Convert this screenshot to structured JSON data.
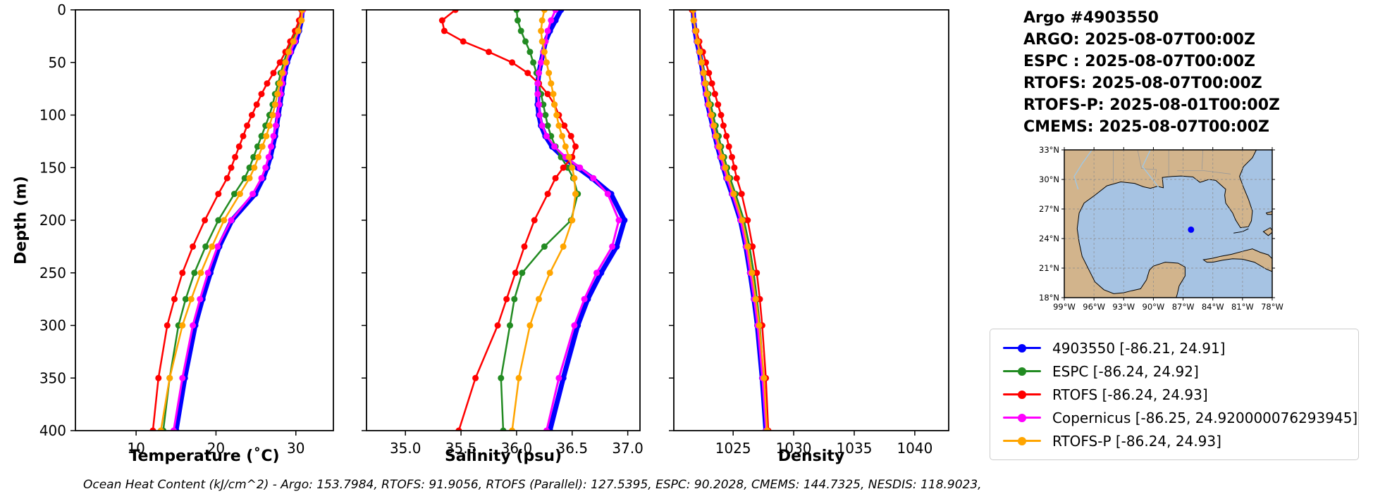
{
  "header": {
    "title": "Argo #4903550",
    "lines": [
      "ARGO: 2025-08-07T00:00Z",
      "ESPC : 2025-08-07T00:00Z",
      "RTOFS: 2025-08-07T00:00Z",
      "RTOFS-P: 2025-08-01T00:00Z",
      "CMEMS: 2025-08-07T00:00Z"
    ]
  },
  "axis": {
    "ylabel": "Depth (m)"
  },
  "footer": {
    "text": "Ocean Heat Content (kJ/cm^2) - Argo: 153.7984,  RTOFS: 91.9056,  RTOFS (Parallel): 127.5395,  ESPC: 90.2028,  CMEMS: 144.7325,  NESDIS: 118.9023,"
  },
  "legend": {
    "items": [
      {
        "label": "4903550 [-86.21, 24.91]",
        "color": "#0000ff"
      },
      {
        "label": "ESPC [-86.24, 24.92]",
        "color": "#228B22"
      },
      {
        "label": "RTOFS [-86.24, 24.93]",
        "color": "#ff0000"
      },
      {
        "label": "Copernicus [-86.25, 24.920000076293945]",
        "color": "#ff00ff"
      },
      {
        "label": "RTOFS-P [-86.24, 24.93]",
        "color": "#ffa500"
      }
    ]
  },
  "series_meta": {
    "4903550": {
      "color": "#0000ff",
      "lw": 7,
      "r": 4.5
    },
    "ESPC": {
      "color": "#228B22",
      "lw": 2.5,
      "r": 4.5
    },
    "RTOFS": {
      "color": "#ff0000",
      "lw": 2.5,
      "r": 4.5
    },
    "Copernicus": {
      "color": "#ff00ff",
      "lw": 3,
      "r": 4.5
    },
    "RTOFS-P": {
      "color": "#ffa500",
      "lw": 2.5,
      "r": 4.5
    }
  },
  "chart_data": [
    {
      "type": "line",
      "xlabel": "Temperature (˚C)",
      "xlim": [
        2.4,
        34.7
      ],
      "xticks": [
        10,
        20,
        30
      ],
      "xtick_labels": [
        "10",
        "20",
        "30"
      ],
      "ylim": [
        0,
        400
      ],
      "y_inverted": true,
      "yticks": [
        0,
        50,
        100,
        150,
        200,
        250,
        300,
        350,
        400
      ],
      "ytick_labels": [
        "0",
        "50",
        "100",
        "150",
        "200",
        "250",
        "300",
        "350",
        "400"
      ],
      "show_depth_labels": true,
      "depths": [
        0,
        10,
        20,
        30,
        40,
        50,
        60,
        70,
        80,
        90,
        100,
        110,
        120,
        130,
        140,
        150,
        160,
        175,
        200,
        225,
        250,
        275,
        300,
        350,
        400
      ],
      "series": [
        {
          "name": "4903550",
          "values": [
            30.8,
            30.7,
            30.4,
            30.0,
            29.4,
            28.9,
            28.6,
            28.4,
            28.2,
            28.0,
            27.8,
            27.6,
            27.4,
            27.1,
            26.8,
            26.4,
            25.9,
            24.9,
            22.0,
            20.4,
            19.3,
            18.3,
            17.4,
            16.1,
            15.0
          ]
        },
        {
          "name": "ESPC",
          "values": [
            30.9,
            30.6,
            30.1,
            29.5,
            28.9,
            28.5,
            28.1,
            27.8,
            27.4,
            27.1,
            26.7,
            26.2,
            25.7,
            25.2,
            24.7,
            24.2,
            23.6,
            22.3,
            20.3,
            18.7,
            17.3,
            16.2,
            15.3,
            14.2,
            13.4
          ]
        },
        {
          "name": "RTOFS",
          "values": [
            30.7,
            30.4,
            29.9,
            29.3,
            28.7,
            28.0,
            27.2,
            26.4,
            25.7,
            25.1,
            24.5,
            23.9,
            23.4,
            22.9,
            22.4,
            21.9,
            21.4,
            20.3,
            18.6,
            17.1,
            15.8,
            14.8,
            13.9,
            12.8,
            12.1
          ]
        },
        {
          "name": "Copernicus",
          "values": [
            30.9,
            30.7,
            30.3,
            29.9,
            29.3,
            28.8,
            28.5,
            28.3,
            28.1,
            27.9,
            27.7,
            27.5,
            27.2,
            26.9,
            26.6,
            26.2,
            25.7,
            24.6,
            21.9,
            20.2,
            19.0,
            18.0,
            17.1,
            15.8,
            14.7
          ]
        },
        {
          "name": "RTOFS-P",
          "values": [
            30.8,
            30.7,
            30.3,
            29.7,
            29.1,
            28.7,
            28.3,
            28.0,
            27.7,
            27.4,
            27.1,
            26.7,
            26.3,
            25.8,
            25.3,
            24.8,
            24.2,
            23.0,
            21.0,
            19.5,
            18.1,
            16.9,
            15.8,
            14.2,
            13.1
          ]
        }
      ]
    },
    {
      "type": "line",
      "xlabel": "Salinity (psu)",
      "xlim": [
        34.65,
        37.11
      ],
      "xticks": [
        35.0,
        35.5,
        36.0,
        36.5,
        37.0
      ],
      "xtick_labels": [
        "35.0",
        "35.5",
        "36.0",
        "36.5",
        "37.0"
      ],
      "ylim": [
        0,
        400
      ],
      "y_inverted": true,
      "show_depth_labels": false,
      "depths": [
        0,
        10,
        20,
        30,
        40,
        50,
        60,
        70,
        80,
        90,
        100,
        110,
        120,
        130,
        140,
        150,
        160,
        175,
        200,
        225,
        250,
        275,
        300,
        350,
        400
      ],
      "series": [
        {
          "name": "4903550",
          "values": [
            36.4,
            36.35,
            36.3,
            36.26,
            36.24,
            36.22,
            36.2,
            36.19,
            36.19,
            36.19,
            36.2,
            36.22,
            36.26,
            36.32,
            36.42,
            36.55,
            36.68,
            36.85,
            36.97,
            36.9,
            36.76,
            36.64,
            36.55,
            36.42,
            36.3
          ]
        },
        {
          "name": "ESPC",
          "values": [
            36.0,
            36.01,
            36.04,
            36.08,
            36.12,
            36.15,
            36.18,
            36.2,
            36.22,
            36.24,
            36.26,
            36.28,
            36.31,
            36.35,
            36.4,
            36.46,
            36.51,
            36.55,
            36.49,
            36.25,
            36.05,
            35.98,
            35.94,
            35.86,
            35.88
          ]
        },
        {
          "name": "RTOFS",
          "values": [
            35.45,
            35.33,
            35.35,
            35.52,
            35.75,
            35.96,
            36.1,
            36.2,
            36.28,
            36.34,
            36.38,
            36.43,
            36.49,
            36.53,
            36.5,
            36.42,
            36.35,
            36.28,
            36.16,
            36.07,
            35.99,
            35.91,
            35.83,
            35.63,
            35.48
          ]
        },
        {
          "name": "Copernicus",
          "values": [
            36.35,
            36.31,
            36.28,
            36.26,
            36.24,
            36.22,
            36.2,
            36.19,
            36.19,
            36.2,
            36.21,
            36.23,
            36.27,
            36.34,
            36.44,
            36.57,
            36.69,
            36.82,
            36.92,
            36.86,
            36.72,
            36.61,
            36.52,
            36.38,
            36.27
          ]
        },
        {
          "name": "RTOFS-P",
          "values": [
            36.25,
            36.23,
            36.22,
            36.23,
            36.25,
            36.27,
            36.29,
            36.31,
            36.33,
            36.34,
            36.36,
            36.38,
            36.41,
            36.44,
            36.47,
            36.5,
            36.52,
            36.53,
            36.5,
            36.42,
            36.3,
            36.2,
            36.12,
            36.02,
            35.96
          ]
        }
      ]
    },
    {
      "type": "line",
      "xlabel": "Density",
      "xlim": [
        1020.1,
        1042.8
      ],
      "xticks": [
        1025,
        1030,
        1035,
        1040
      ],
      "xtick_labels": [
        "1025",
        "1030",
        "1035",
        "1040"
      ],
      "ylim": [
        0,
        400
      ],
      "y_inverted": true,
      "show_depth_labels": false,
      "depths": [
        0,
        10,
        20,
        30,
        40,
        50,
        60,
        70,
        80,
        90,
        100,
        110,
        120,
        130,
        140,
        150,
        160,
        175,
        200,
        225,
        250,
        275,
        300,
        350,
        400
      ],
      "series": [
        {
          "name": "4903550",
          "values": [
            1021.7,
            1021.75,
            1021.85,
            1022.0,
            1022.2,
            1022.35,
            1022.5,
            1022.6,
            1022.75,
            1022.9,
            1023.1,
            1023.3,
            1023.5,
            1023.7,
            1023.95,
            1024.2,
            1024.45,
            1024.9,
            1025.6,
            1026.05,
            1026.4,
            1026.72,
            1027.0,
            1027.4,
            1027.7
          ]
        },
        {
          "name": "ESPC",
          "values": [
            1021.65,
            1021.75,
            1021.9,
            1022.05,
            1022.25,
            1022.45,
            1022.6,
            1022.75,
            1022.95,
            1023.15,
            1023.35,
            1023.55,
            1023.8,
            1024.0,
            1024.25,
            1024.5,
            1024.75,
            1025.2,
            1025.9,
            1026.35,
            1026.7,
            1026.97,
            1027.2,
            1027.5,
            1027.75
          ]
        },
        {
          "name": "RTOFS",
          "values": [
            1021.6,
            1021.75,
            1021.95,
            1022.2,
            1022.5,
            1022.75,
            1023.0,
            1023.25,
            1023.5,
            1023.75,
            1024.0,
            1024.2,
            1024.45,
            1024.65,
            1024.9,
            1025.1,
            1025.3,
            1025.7,
            1026.2,
            1026.6,
            1026.95,
            1027.2,
            1027.4,
            1027.7,
            1027.9
          ]
        },
        {
          "name": "Copernicus",
          "values": [
            1021.72,
            1021.77,
            1021.87,
            1022.02,
            1022.22,
            1022.37,
            1022.52,
            1022.62,
            1022.77,
            1022.92,
            1023.12,
            1023.32,
            1023.52,
            1023.73,
            1023.98,
            1024.23,
            1024.48,
            1024.93,
            1025.62,
            1026.07,
            1026.42,
            1026.74,
            1027.02,
            1027.42,
            1027.72
          ]
        },
        {
          "name": "RTOFS-P",
          "values": [
            1021.7,
            1021.75,
            1021.9,
            1022.05,
            1022.25,
            1022.4,
            1022.55,
            1022.7,
            1022.85,
            1023.0,
            1023.2,
            1023.4,
            1023.6,
            1023.85,
            1024.1,
            1024.35,
            1024.6,
            1025.05,
            1025.75,
            1026.2,
            1026.55,
            1026.87,
            1027.15,
            1027.55,
            1027.8
          ]
        }
      ]
    }
  ],
  "map": {
    "lon_min": -99,
    "lon_max": -78,
    "lat_min": 18,
    "lat_max": 33,
    "lon_ticks": [
      -99,
      -96,
      -93,
      -90,
      -87,
      -84,
      -81,
      -78
    ],
    "lon_tick_labels": [
      "99°W",
      "96°W",
      "93°W",
      "90°W",
      "87°W",
      "84°W",
      "81°W",
      "78°W"
    ],
    "lat_ticks": [
      33,
      30,
      27,
      24,
      21,
      18
    ],
    "lat_tick_labels": [
      "33°N",
      "30°N",
      "27°N",
      "24°N",
      "21°N",
      "18°N"
    ],
    "ocean_color": "#a6c3e3",
    "land_color": "#d2b48c",
    "grid_color": "#8c8c8c",
    "marker": {
      "lon": -86.2,
      "lat": 24.9,
      "color": "#0000ff"
    },
    "land": [
      [
        [
          -99,
          33
        ],
        [
          -79.6,
          33
        ],
        [
          -80.0,
          32.2
        ],
        [
          -80.9,
          31.3
        ],
        [
          -81.3,
          30.3
        ],
        [
          -80.9,
          29.2
        ],
        [
          -80.4,
          28.0
        ],
        [
          -80.0,
          26.8
        ],
        [
          -80.1,
          25.8
        ],
        [
          -80.4,
          25.2
        ],
        [
          -81.2,
          25.1
        ],
        [
          -81.7,
          25.9
        ],
        [
          -82.0,
          26.6
        ],
        [
          -82.7,
          27.6
        ],
        [
          -82.8,
          28.4
        ],
        [
          -82.7,
          29.0
        ],
        [
          -83.7,
          29.9
        ],
        [
          -84.4,
          30.0
        ],
        [
          -85.3,
          29.7
        ],
        [
          -86.0,
          30.25
        ],
        [
          -87.2,
          30.35
        ],
        [
          -88.1,
          30.3
        ],
        [
          -89.1,
          30.2
        ],
        [
          -89.0,
          29.15
        ],
        [
          -89.6,
          29.3
        ],
        [
          -90.3,
          29.1
        ],
        [
          -91.0,
          29.25
        ],
        [
          -91.9,
          29.6
        ],
        [
          -93.3,
          29.75
        ],
        [
          -94.7,
          29.35
        ],
        [
          -95.9,
          28.4
        ],
        [
          -97.0,
          27.6
        ],
        [
          -97.5,
          26.6
        ],
        [
          -97.7,
          25.0
        ],
        [
          -97.5,
          23.6
        ],
        [
          -97.2,
          22.2
        ],
        [
          -96.5,
          20.8
        ],
        [
          -95.9,
          19.6
        ],
        [
          -95.0,
          18.8
        ],
        [
          -94.0,
          18.4
        ],
        [
          -93.0,
          18.5
        ],
        [
          -92.2,
          18.7
        ],
        [
          -91.3,
          18.9
        ],
        [
          -90.7,
          19.8
        ],
        [
          -90.4,
          20.8
        ],
        [
          -90.0,
          21.2
        ],
        [
          -88.8,
          21.6
        ],
        [
          -87.5,
          21.5
        ],
        [
          -86.8,
          21.1
        ],
        [
          -86.8,
          20.2
        ],
        [
          -87.4,
          19.2
        ],
        [
          -87.6,
          18.3
        ],
        [
          -87.7,
          18.0
        ],
        [
          -99,
          18
        ]
      ],
      [
        [
          -84.95,
          21.85
        ],
        [
          -84.0,
          22.0
        ],
        [
          -83.2,
          22.2
        ],
        [
          -82.1,
          22.4
        ],
        [
          -81.0,
          22.7
        ],
        [
          -80.0,
          22.95
        ],
        [
          -79.2,
          22.6
        ],
        [
          -78.4,
          22.35
        ],
        [
          -78.0,
          21.95
        ],
        [
          -78.0,
          20.65
        ],
        [
          -78.6,
          20.9
        ],
        [
          -79.8,
          21.6
        ],
        [
          -81.0,
          21.9
        ],
        [
          -82.0,
          21.95
        ],
        [
          -83.0,
          21.8
        ],
        [
          -84.0,
          21.6
        ],
        [
          -84.6,
          21.6
        ]
      ],
      [
        [
          -78.9,
          24.7
        ],
        [
          -78.2,
          25.1
        ],
        [
          -77.9,
          24.7
        ],
        [
          -78.4,
          24.3
        ]
      ],
      [
        [
          -78.6,
          26.6
        ],
        [
          -78.0,
          26.75
        ],
        [
          -78.0,
          26.45
        ],
        [
          -78.5,
          26.45
        ]
      ]
    ],
    "borders": [
      [
        [
          -94.05,
          33
        ],
        [
          -94.05,
          29.7
        ]
      ],
      [
        [
          -88.45,
          33
        ],
        [
          -88.45,
          30.3
        ]
      ],
      [
        [
          -85.0,
          33
        ],
        [
          -85.1,
          31.0
        ]
      ],
      [
        [
          -87.6,
          30.9
        ],
        [
          -85.0,
          30.9
        ],
        [
          -82.2,
          30.55
        ]
      ],
      [
        [
          -91.6,
          33
        ],
        [
          -91.2,
          31.1
        ],
        [
          -89.7,
          31.0
        ],
        [
          -89.8,
          30.2
        ]
      ]
    ],
    "rivers": [
      [
        [
          -96.2,
          33
        ],
        [
          -97.2,
          31.6
        ],
        [
          -98.0,
          30.3
        ],
        [
          -97.6,
          29.0
        ]
      ],
      [
        [
          -90.3,
          33
        ],
        [
          -91.1,
          31.3
        ],
        [
          -90.0,
          29.9
        ],
        [
          -89.4,
          29.1
        ]
      ]
    ],
    "extra_coastlines": [
      [
        [
          -81.9,
          24.55
        ],
        [
          -81.0,
          24.7
        ],
        [
          -80.4,
          25.0
        ]
      ]
    ],
    "river_color": "#9ec8e8"
  }
}
